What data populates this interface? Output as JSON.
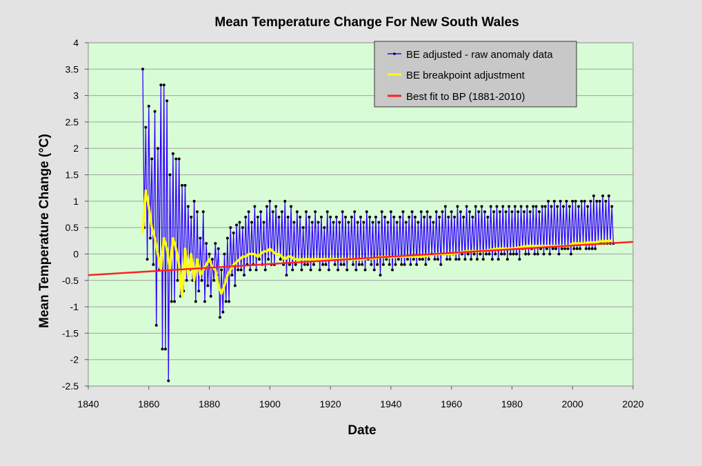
{
  "chart_data": {
    "type": "line",
    "title": "Mean Temperature Change For New South Wales",
    "xlabel": "Date",
    "ylabel": "Mean  Temperature  Change  (°C)",
    "xlim": [
      1840,
      2020
    ],
    "ylim": [
      -2.5,
      4
    ],
    "x_ticks": [
      "1840",
      "1860",
      "1880",
      "1900",
      "1920",
      "1940",
      "1960",
      "1980",
      "2000",
      "2020"
    ],
    "y_ticks": [
      "4",
      "3.5",
      "3",
      "2.5",
      "2",
      "1.5",
      "1",
      "0.5",
      "0",
      "-0.5",
      "-1",
      "-1.5",
      "-2",
      "-2.5"
    ],
    "grid": true,
    "legend_placement": "top-right",
    "colors": {
      "plot_bg": "#d8fcd6",
      "raw": "#3300ff",
      "marker": "#000000",
      "adjustment": "#ffff00",
      "fit": "#ff2020",
      "grid": "#a0a0a0",
      "legend_bg": "#c8c8c8"
    },
    "series": [
      {
        "name": "BE adjusted - raw anomaly data",
        "x_start": 1858,
        "x_step": 0.5,
        "values": [
          3.5,
          0.5,
          2.4,
          -0.1,
          2.8,
          0.3,
          1.8,
          -0.2,
          2.7,
          -1.35,
          2.0,
          -0.3,
          3.2,
          -1.8,
          3.2,
          -1.8,
          2.9,
          -2.4,
          1.5,
          -0.9,
          1.9,
          -0.9,
          1.8,
          -0.5,
          1.8,
          -0.8,
          1.3,
          -0.7,
          1.3,
          -0.5,
          0.9,
          -0.3,
          0.7,
          -0.5,
          1.0,
          -0.9,
          0.8,
          -0.7,
          0.3,
          -0.5,
          0.8,
          -0.9,
          0.2,
          -0.6,
          0.0,
          -0.8,
          -0.1,
          -0.5,
          0.2,
          -0.4,
          0.1,
          -1.2,
          -0.3,
          -1.1,
          0.0,
          -0.9,
          0.3,
          -0.9,
          0.5,
          -0.4,
          0.4,
          -0.6,
          0.55,
          -0.3,
          0.6,
          -0.3,
          0.5,
          -0.4,
          0.7,
          -0.2,
          0.8,
          -0.3,
          0.6,
          -0.2,
          0.9,
          -0.3,
          0.7,
          -0.1,
          0.8,
          -0.2,
          0.6,
          -0.3,
          0.9,
          -0.1,
          1.0,
          -0.2,
          0.8,
          -0.2,
          0.9,
          0.0,
          0.7,
          -0.1,
          0.8,
          -0.2,
          1.0,
          -0.4,
          0.7,
          -0.2,
          0.9,
          -0.3,
          0.6,
          -0.2,
          0.8,
          -0.1,
          0.7,
          -0.3,
          0.5,
          -0.2,
          0.8,
          -0.2,
          0.7,
          -0.3,
          0.6,
          -0.2,
          0.8,
          -0.1,
          0.6,
          -0.3,
          0.7,
          -0.2,
          0.5,
          -0.2,
          0.8,
          -0.3,
          0.7,
          -0.1,
          0.6,
          -0.2,
          0.7,
          -0.3,
          0.6,
          -0.2,
          0.8,
          -0.2,
          0.7,
          -0.3,
          0.6,
          -0.1,
          0.7,
          -0.2,
          0.8,
          -0.3,
          0.6,
          -0.2,
          0.7,
          -0.2,
          0.6,
          -0.3,
          0.8,
          -0.1,
          0.7,
          -0.2,
          0.6,
          -0.3,
          0.7,
          -0.2,
          0.6,
          -0.4,
          0.8,
          -0.2,
          0.7,
          -0.1,
          0.6,
          -0.2,
          0.8,
          -0.3,
          0.7,
          -0.2,
          0.6,
          -0.1,
          0.7,
          -0.2,
          0.8,
          -0.2,
          0.6,
          -0.1,
          0.7,
          -0.2,
          0.8,
          -0.1,
          0.7,
          -0.2,
          0.6,
          -0.1,
          0.8,
          -0.1,
          0.7,
          -0.2,
          0.8,
          -0.1,
          0.7,
          0.0,
          0.6,
          -0.1,
          0.8,
          -0.1,
          0.7,
          -0.2,
          0.8,
          0.0,
          0.9,
          -0.1,
          0.7,
          -0.1,
          0.8,
          0.0,
          0.7,
          -0.1,
          0.9,
          -0.1,
          0.8,
          0.0,
          0.7,
          -0.1,
          0.9,
          0.0,
          0.8,
          -0.1,
          0.7,
          0.0,
          0.9,
          -0.1,
          0.8,
          0.0,
          0.9,
          -0.1,
          0.8,
          0.0,
          0.7,
          0.0,
          0.9,
          -0.1,
          0.8,
          0.0,
          0.9,
          -0.1,
          0.8,
          0.0,
          0.9,
          0.0,
          0.8,
          -0.1,
          0.9,
          0.0,
          0.8,
          0.0,
          0.9,
          0.0,
          0.8,
          -0.1,
          0.9,
          0.1,
          0.8,
          0.0,
          0.9,
          0.0,
          0.8,
          0.1,
          0.9,
          0.0,
          0.9,
          0.0,
          0.8,
          0.1,
          0.9,
          0.0,
          0.9,
          0.1,
          1.0,
          0.0,
          0.9,
          0.1,
          1.0,
          0.1,
          0.9,
          0.0,
          1.0,
          0.1,
          0.9,
          0.1,
          1.0,
          0.1,
          0.9,
          0.0,
          1.0,
          0.1,
          1.0,
          0.1,
          0.9,
          0.1,
          1.0,
          0.2,
          1.0,
          0.1,
          0.9,
          0.1,
          1.0,
          0.1,
          1.1,
          0.1,
          1.0,
          0.2,
          1.0,
          0.2,
          1.1,
          0.2,
          1.0,
          0.2,
          1.1,
          0.2,
          0.9,
          0.2
        ]
      },
      {
        "name": "BE breakpoint adjustment",
        "x_start": 1858,
        "x_step": 1,
        "values": [
          0.4,
          1.2,
          0.9,
          0.5,
          0.3,
          0.0,
          -0.3,
          0.3,
          0.1,
          -0.3,
          0.3,
          0.1,
          -0.2,
          -0.8,
          0.1,
          -0.4,
          0.0,
          -0.5,
          -0.1,
          -0.4,
          -0.3,
          -0.2,
          -0.1,
          -0.25,
          -0.3,
          -0.6,
          -0.75,
          -0.6,
          -0.4,
          -0.3,
          -0.2,
          -0.15,
          -0.1,
          -0.05,
          -0.05,
          0.0,
          0.0,
          0.0,
          -0.05,
          0.0,
          0.05,
          0.05,
          0.1,
          0.05,
          0.0,
          0.0,
          -0.05,
          -0.1,
          -0.05,
          -0.05,
          -0.1,
          -0.1,
          -0.1,
          -0.1,
          -0.1,
          -0.1,
          -0.1,
          -0.1,
          -0.1,
          -0.1,
          -0.1,
          -0.1,
          -0.1,
          -0.1,
          -0.1,
          -0.1,
          -0.1,
          -0.1,
          -0.1,
          -0.1,
          -0.1,
          -0.1,
          -0.1,
          -0.1,
          -0.08,
          -0.08,
          -0.08,
          -0.08,
          -0.06,
          -0.06,
          -0.06,
          -0.06,
          -0.06,
          -0.06,
          -0.05,
          -0.05,
          -0.05,
          -0.05,
          -0.05,
          -0.05,
          -0.05,
          -0.05,
          -0.05,
          -0.04,
          -0.03,
          -0.02,
          -0.01,
          0.0,
          0.0,
          0.0,
          0.0,
          0.0,
          0.0,
          0.01,
          0.02,
          0.03,
          0.04,
          0.05,
          0.05,
          0.05,
          0.05,
          0.05,
          0.05,
          0.06,
          0.07,
          0.08,
          0.09,
          0.1,
          0.1,
          0.1,
          0.1,
          0.1,
          0.1,
          0.11,
          0.12,
          0.13,
          0.14,
          0.15,
          0.15,
          0.15,
          0.15,
          0.15,
          0.15,
          0.15,
          0.15,
          0.15,
          0.15,
          0.15,
          0.15,
          0.15,
          0.15,
          0.15,
          0.2,
          0.2,
          0.2,
          0.2,
          0.2,
          0.22,
          0.22,
          0.22,
          0.22,
          0.24,
          0.24,
          0.24,
          0.25,
          0.25
        ]
      },
      {
        "name": "Best fit to BP (1881-2010)",
        "x": [
          1840,
          2020
        ],
        "values": [
          -0.4,
          0.23
        ]
      }
    ]
  }
}
